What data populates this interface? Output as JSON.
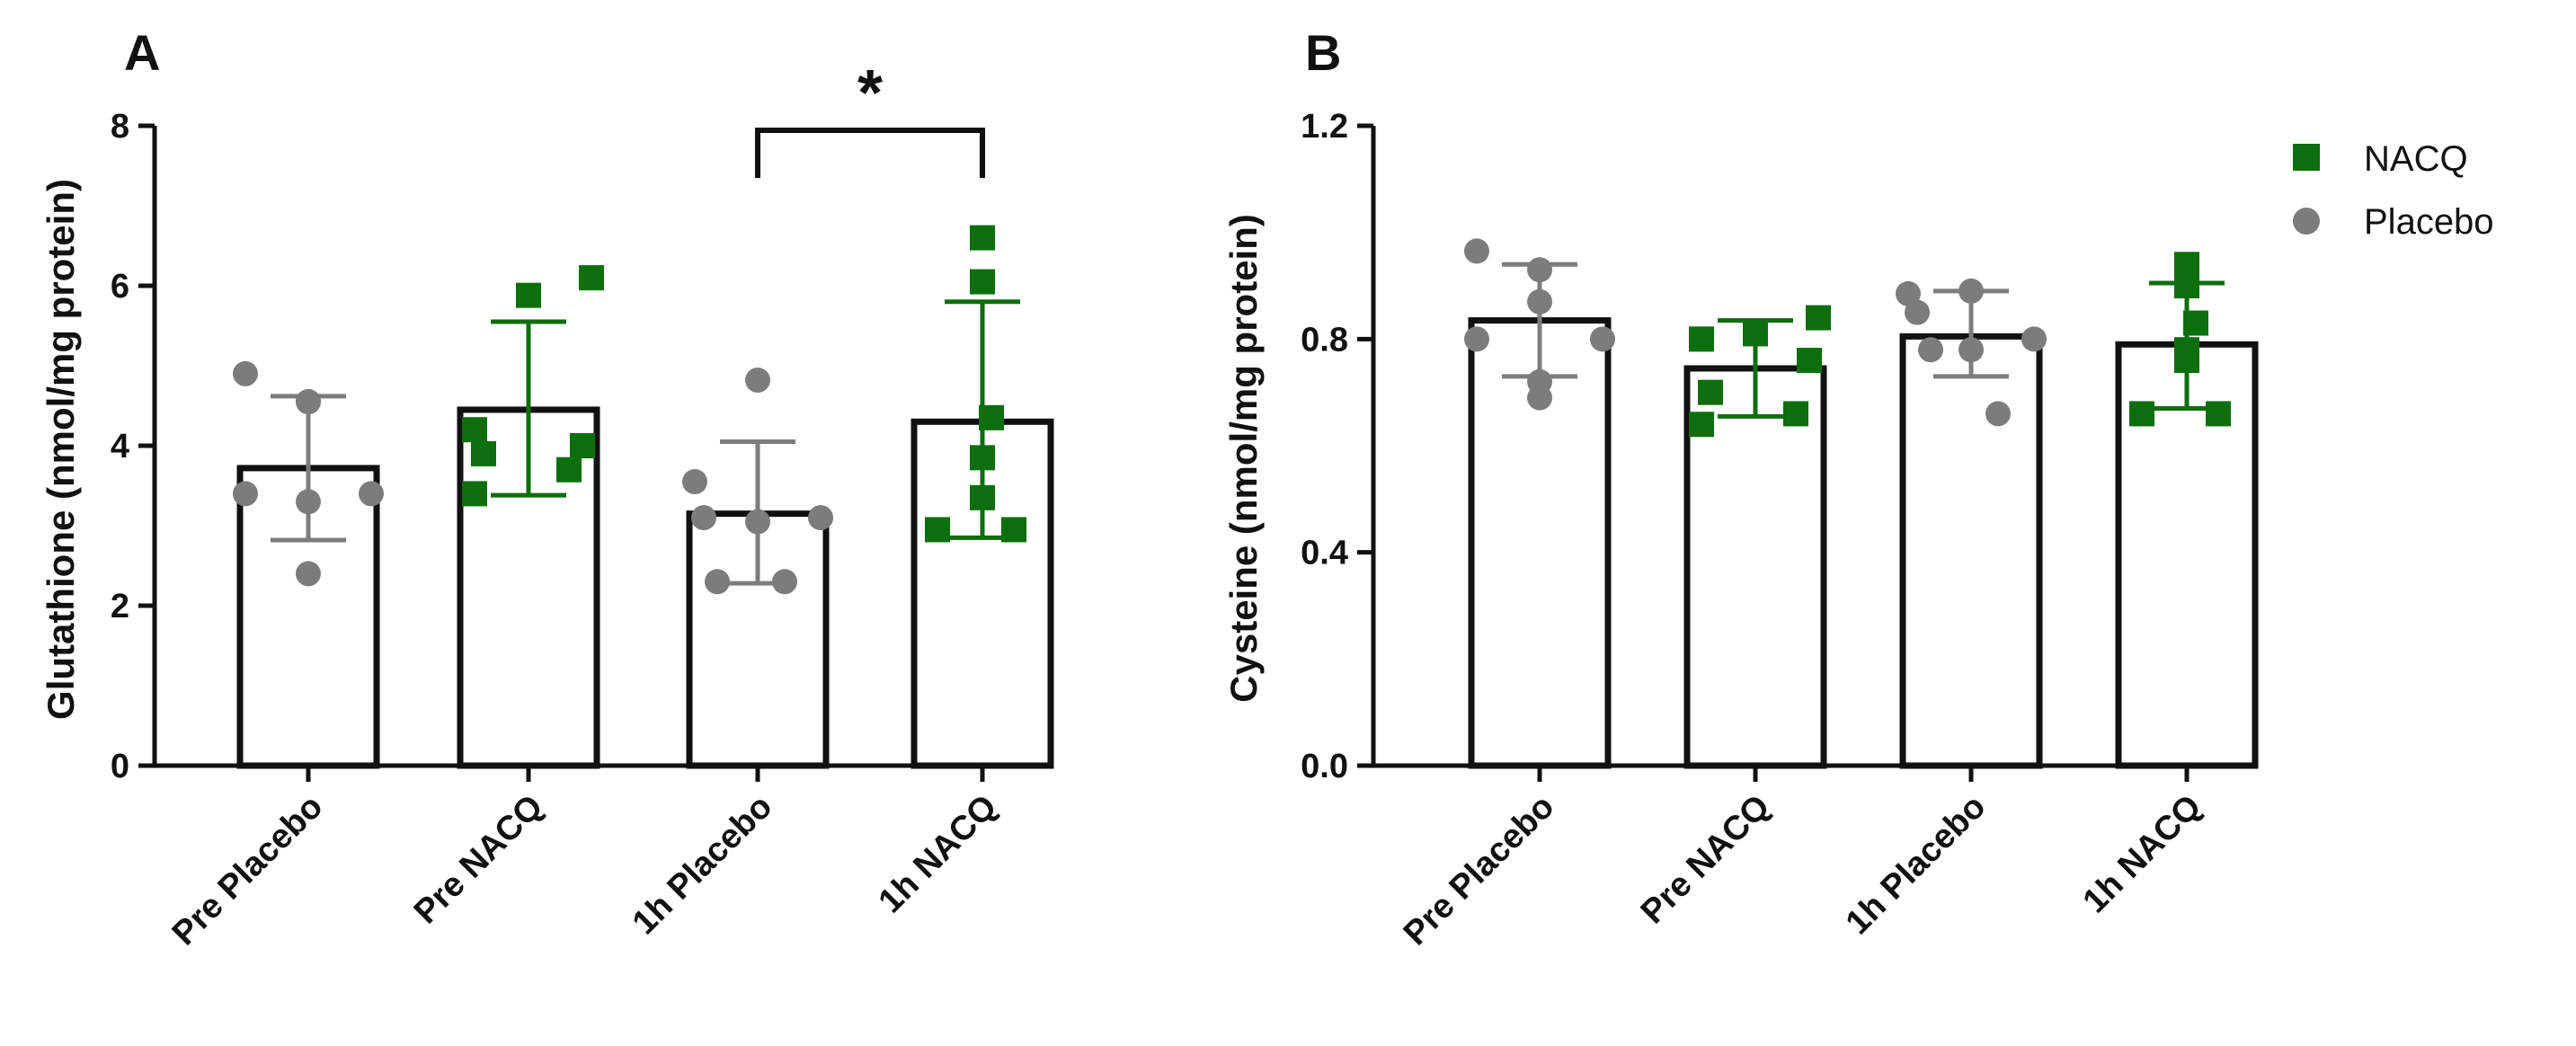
{
  "chart_data": [
    {
      "type": "bar",
      "panel_label": "A",
      "categories": [
        "Pre Placebo",
        "Pre NACQ",
        "1h Placebo",
        "1h NACQ"
      ],
      "groups": [
        "Placebo",
        "NACQ",
        "Placebo",
        "NACQ"
      ],
      "means": [
        3.72,
        4.45,
        3.15,
        4.3
      ],
      "sd_upper": [
        4.62,
        5.55,
        4.05,
        5.8
      ],
      "sd_lower": [
        2.82,
        3.38,
        2.28,
        2.85
      ],
      "points": [
        [
          4.9,
          4.55,
          4.55,
          3.4,
          3.4,
          3.3,
          2.4
        ],
        [
          6.1,
          5.88,
          4.2,
          4.0,
          3.9,
          3.7,
          3.4
        ],
        [
          4.82,
          3.55,
          3.1,
          3.1,
          3.05,
          2.3,
          2.3
        ],
        [
          6.6,
          6.05,
          4.35,
          3.85,
          3.35,
          2.95,
          2.95
        ]
      ],
      "title": "",
      "xlabel": "",
      "ylabel": "Glutathione (nmol/mg protein)",
      "ylim": [
        0,
        8
      ],
      "yticks": [
        "0",
        "2",
        "4",
        "6",
        "8"
      ],
      "significance": {
        "from": 2,
        "to": 3,
        "label": "*"
      }
    },
    {
      "type": "bar",
      "panel_label": "B",
      "categories": [
        "Pre Placebo",
        "Pre NACQ",
        "1h Placebo",
        "1h NACQ"
      ],
      "groups": [
        "Placebo",
        "NACQ",
        "Placebo",
        "NACQ"
      ],
      "means": [
        0.835,
        0.745,
        0.805,
        0.79
      ],
      "sd_upper": [
        0.94,
        0.835,
        0.89,
        0.905
      ],
      "sd_lower": [
        0.73,
        0.655,
        0.73,
        0.67
      ],
      "points": [
        [
          0.965,
          0.93,
          0.87,
          0.8,
          0.8,
          0.72,
          0.69
        ],
        [
          0.84,
          0.81,
          0.8,
          0.76,
          0.7,
          0.66,
          0.64
        ],
        [
          0.89,
          0.885,
          0.85,
          0.8,
          0.78,
          0.78,
          0.66
        ],
        [
          0.94,
          0.9,
          0.83,
          0.78,
          0.76,
          0.66,
          0.66
        ]
      ],
      "title": "",
      "xlabel": "",
      "ylabel": "Cysteine  (nmol/mg protein)",
      "ylim": [
        0,
        1.2
      ],
      "yticks": [
        "0.0",
        "0.4",
        "0.8",
        "1.2"
      ]
    }
  ],
  "legend": [
    {
      "label": "NACQ",
      "marker": "square",
      "color": "#0d6e0d"
    },
    {
      "label": "Placebo",
      "marker": "circle",
      "color": "#7c7c7c"
    }
  ],
  "colors": {
    "NACQ": "#0d6e0d",
    "Placebo": "#7c7c7c",
    "bar_edge": "#111111",
    "bar_fill": "#ffffff"
  }
}
